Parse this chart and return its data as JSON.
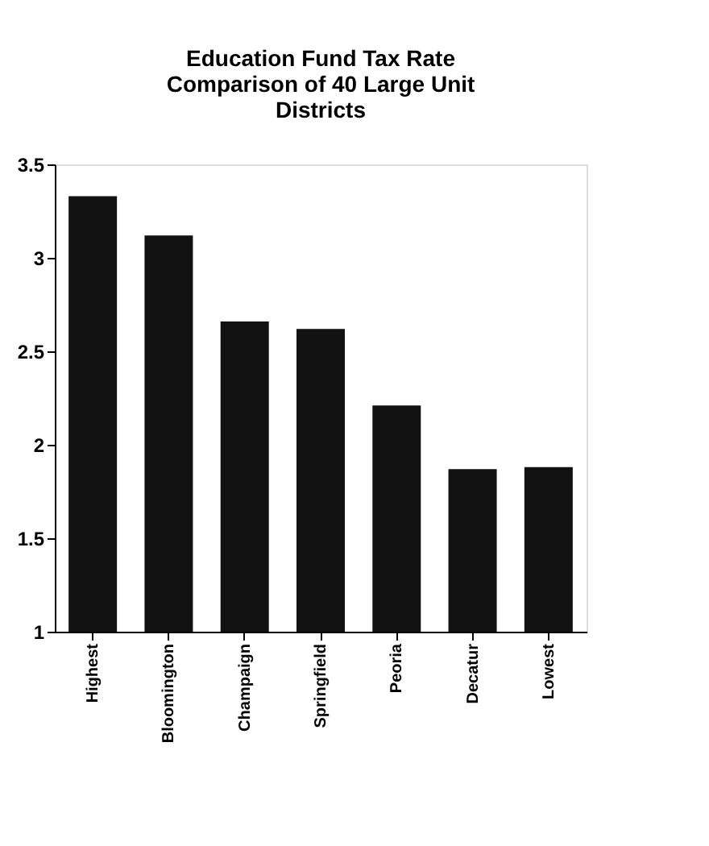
{
  "chart_data": {
    "type": "bar",
    "title": [
      "Education Fund Tax Rate",
      "Comparison of 40 Large Unit",
      "Districts"
    ],
    "categories": [
      "Highest",
      "Bloomington",
      "Champaign",
      "Springfield",
      "Peoria",
      "Decatur",
      "Lowest"
    ],
    "values": [
      3.33,
      3.12,
      2.66,
      2.62,
      2.21,
      1.87,
      1.88
    ],
    "color": "#111111",
    "ylim": [
      1,
      3.5
    ],
    "yticks": [
      1,
      1.5,
      2,
      2.5,
      3,
      3.5
    ],
    "grid": false
  }
}
